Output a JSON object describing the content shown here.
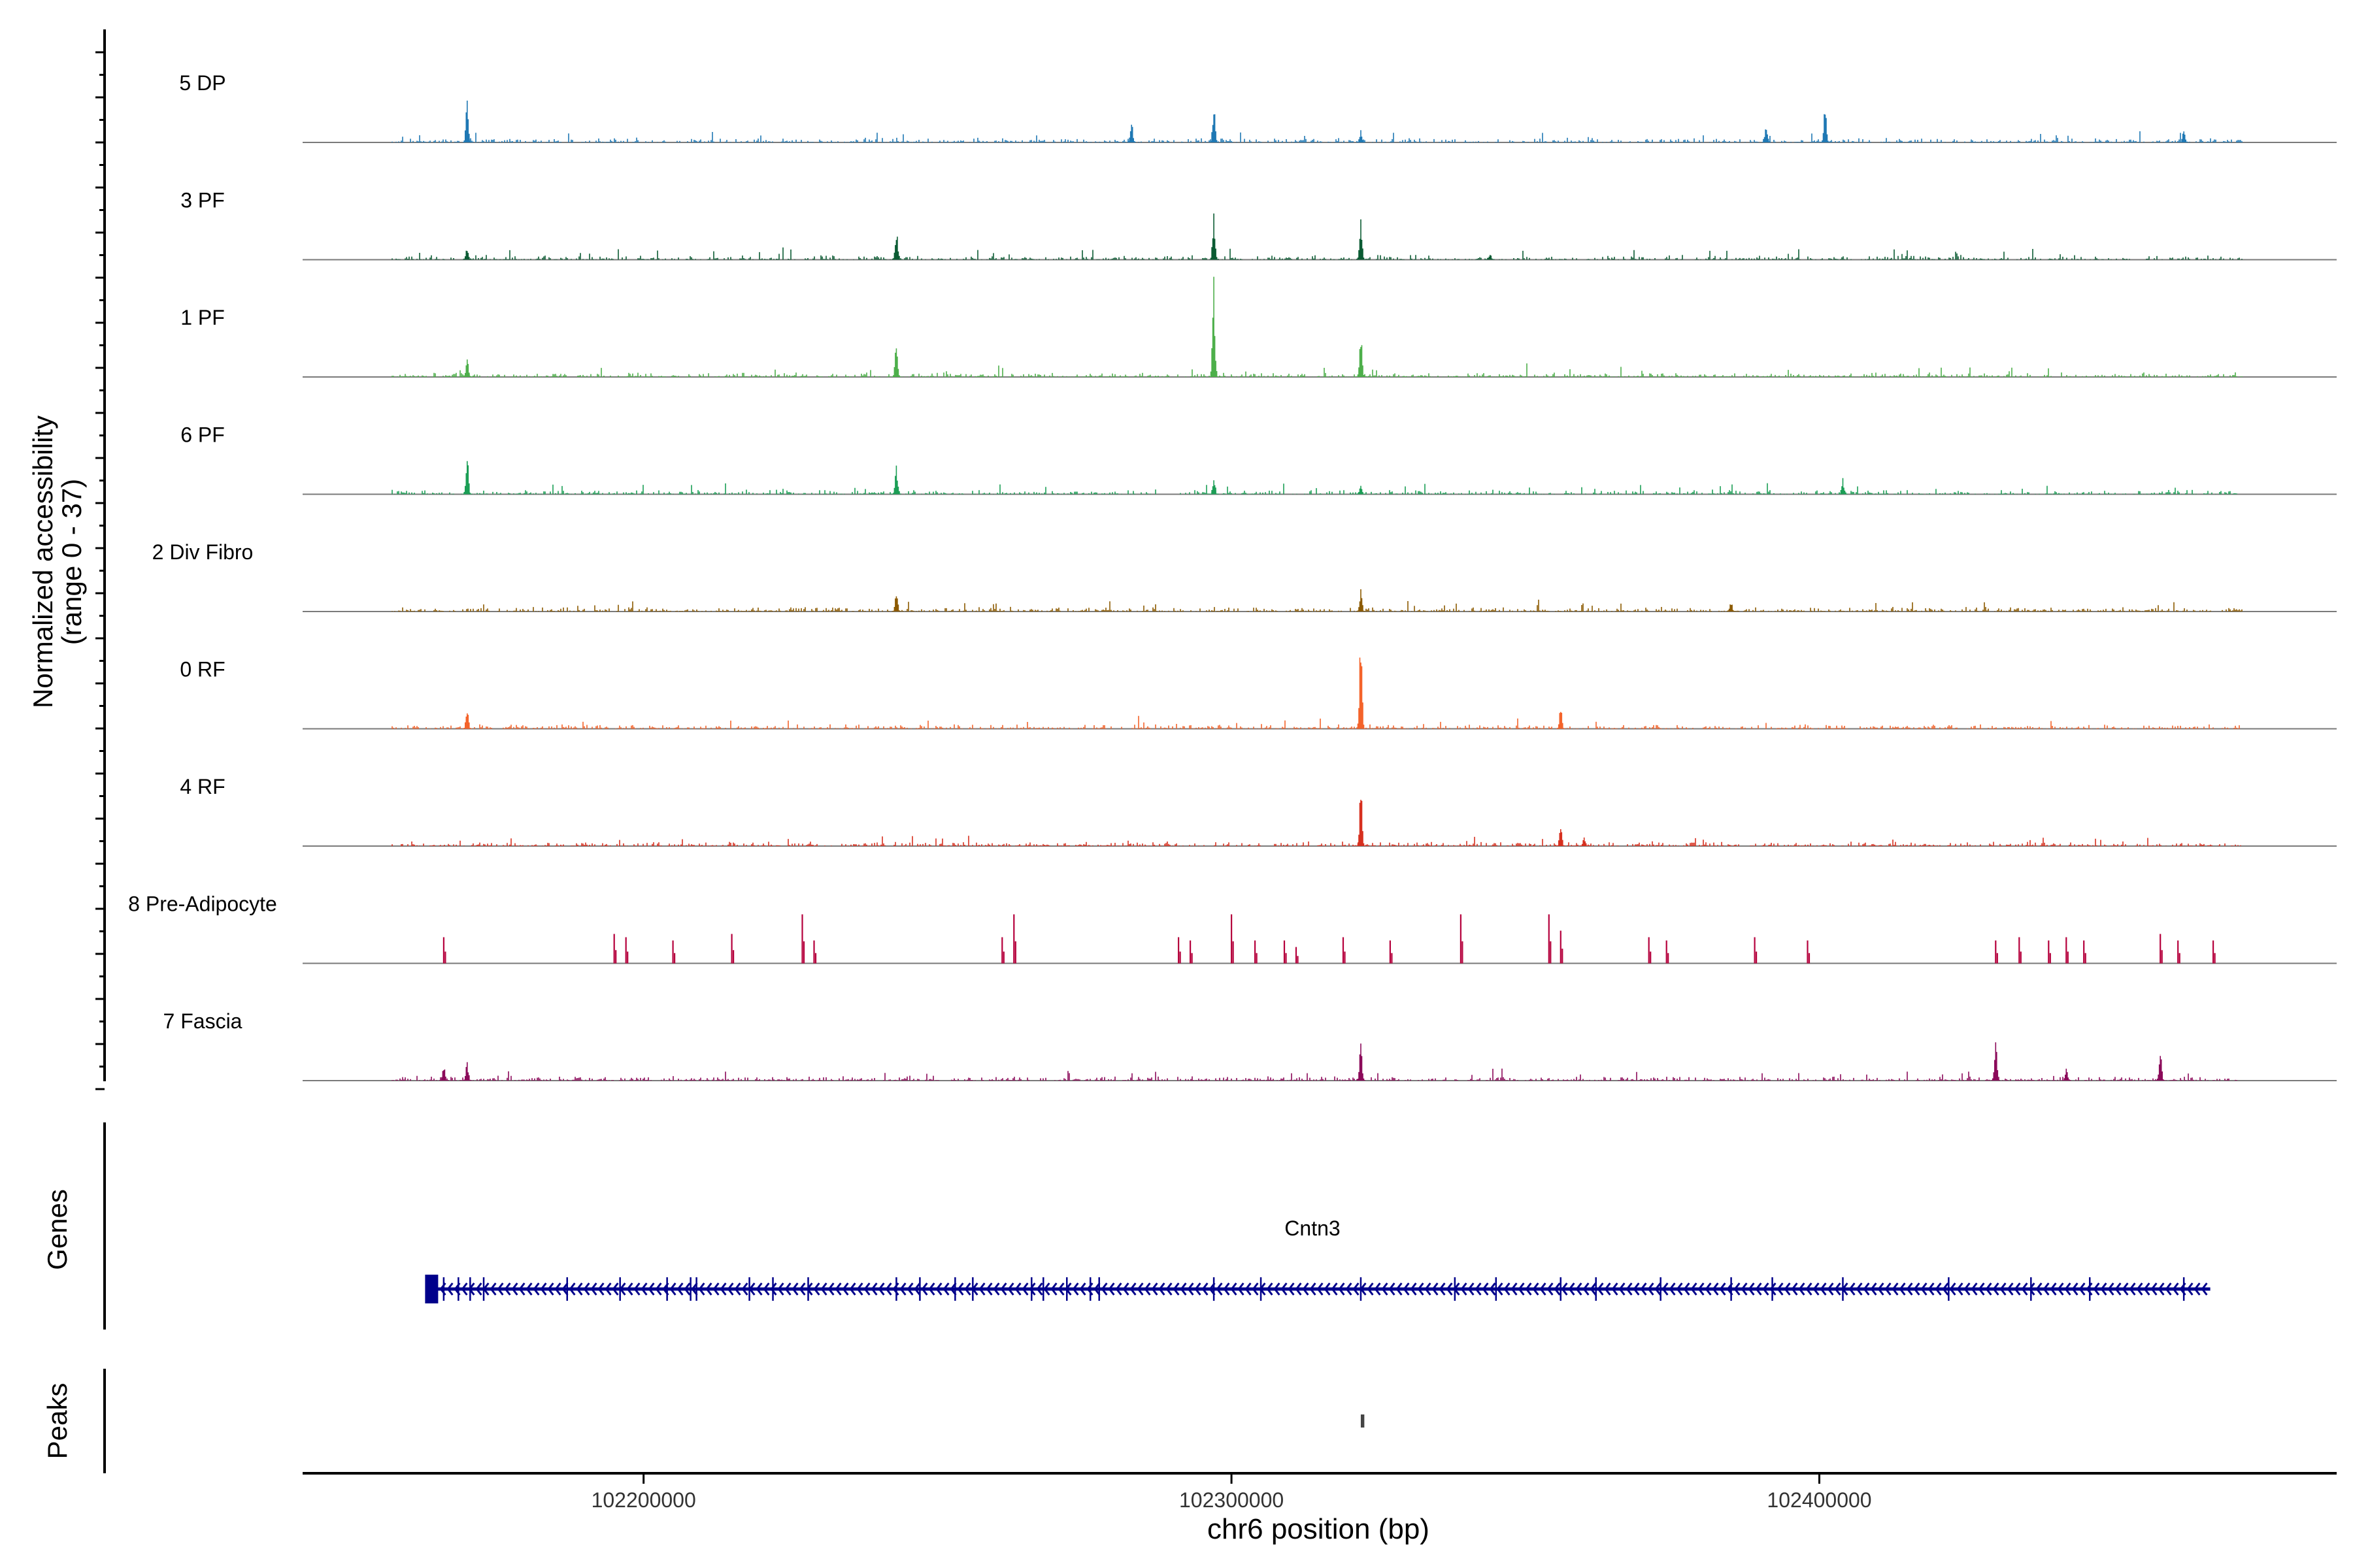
{
  "chart_data": {
    "type": "area",
    "subtype": "genome-coverage-track",
    "region": {
      "chrom": "chr6",
      "start": 102142000,
      "end": 102488000
    },
    "xlabel": "chr6 position (bp)",
    "ylabel_line1": "Normalized accessibility",
    "ylabel_line2": "(range 0 - 37)",
    "y_range": [
      0,
      37
    ],
    "x_ticks": [
      102200000,
      102300000,
      102400000
    ],
    "x_tick_labels": [
      "102200000",
      "102300000",
      "102400000"
    ],
    "panel_labels": {
      "genes": "Genes",
      "peaks": "Peaks"
    },
    "tracks": [
      {
        "name": "5 DP",
        "color": "#1f78b4",
        "style": "dense",
        "seed": 11,
        "peaks": [
          [
            102170000,
            26
          ],
          [
            102283000,
            16
          ],
          [
            102297000,
            26
          ],
          [
            102322000,
            8
          ],
          [
            102391000,
            12
          ],
          [
            102401000,
            24
          ],
          [
            102462000,
            8
          ]
        ]
      },
      {
        "name": "3 PF",
        "color": "#0b5b33",
        "style": "dense",
        "seed": 23,
        "peaks": [
          [
            102170000,
            8
          ],
          [
            102243000,
            20
          ],
          [
            102297000,
            30
          ],
          [
            102322000,
            30
          ],
          [
            102344000,
            4
          ]
        ]
      },
      {
        "name": "1 PF",
        "color": "#4daf4a",
        "style": "dense",
        "seed": 37,
        "peaks": [
          [
            102170000,
            14
          ],
          [
            102243000,
            24
          ],
          [
            102297000,
            62
          ],
          [
            102322000,
            30
          ]
        ]
      },
      {
        "name": "6 PF",
        "color": "#1b9e55",
        "style": "dense",
        "seed": 41,
        "peaks": [
          [
            102170000,
            26
          ],
          [
            102243000,
            20
          ],
          [
            102297000,
            10
          ],
          [
            102322000,
            6
          ],
          [
            102404000,
            10
          ]
        ]
      },
      {
        "name": "2 Div Fibro",
        "color": "#8c5a00",
        "style": "dense",
        "seed": 53,
        "peaks": [
          [
            102243000,
            16
          ],
          [
            102322000,
            14
          ],
          [
            102385000,
            6
          ]
        ]
      },
      {
        "name": "0 RF",
        "color": "#f4632a",
        "style": "dense",
        "seed": 61,
        "peaks": [
          [
            102170000,
            14
          ],
          [
            102322000,
            62
          ],
          [
            102356000,
            14
          ]
        ]
      },
      {
        "name": "4 RF",
        "color": "#d7301f",
        "style": "dense",
        "seed": 71,
        "peaks": [
          [
            102322000,
            38
          ],
          [
            102356000,
            14
          ],
          [
            102360000,
            6
          ]
        ]
      },
      {
        "name": "8 Pre-Adipocyte",
        "color": "#b5003c",
        "style": "sparse",
        "seed": 83,
        "peaks": [
          [
            102166000,
            16
          ],
          [
            102195000,
            18
          ],
          [
            102197000,
            16
          ],
          [
            102205000,
            14
          ],
          [
            102215000,
            18
          ],
          [
            102227000,
            30
          ],
          [
            102229000,
            14
          ],
          [
            102261000,
            16
          ],
          [
            102263000,
            30
          ],
          [
            102291000,
            16
          ],
          [
            102293000,
            14
          ],
          [
            102300000,
            30
          ],
          [
            102304000,
            14
          ],
          [
            102309000,
            14
          ],
          [
            102311000,
            10
          ],
          [
            102319000,
            16
          ],
          [
            102327000,
            14
          ],
          [
            102339000,
            30
          ],
          [
            102354000,
            30
          ],
          [
            102356000,
            20
          ],
          [
            102371000,
            16
          ],
          [
            102374000,
            14
          ],
          [
            102389000,
            16
          ],
          [
            102398000,
            14
          ],
          [
            102430000,
            14
          ],
          [
            102434000,
            16
          ],
          [
            102439000,
            14
          ],
          [
            102442000,
            16
          ],
          [
            102445000,
            14
          ],
          [
            102458000,
            18
          ],
          [
            102461000,
            14
          ],
          [
            102467000,
            14
          ]
        ]
      },
      {
        "name": "7 Fascia",
        "color": "#8b0a5a",
        "style": "dense",
        "seed": 97,
        "peaks": [
          [
            102166000,
            10
          ],
          [
            102170000,
            12
          ],
          [
            102322000,
            28
          ],
          [
            102430000,
            24
          ],
          [
            102442000,
            8
          ],
          [
            102458000,
            20
          ]
        ]
      }
    ],
    "gene": {
      "name": "Cntn3",
      "start": 102163500,
      "end": 102466500,
      "strand": "-",
      "color": "#00008b",
      "exons": [
        102166000,
        102168500,
        102170500,
        102172800,
        102187000,
        102196000,
        102204000,
        102208000,
        102209000,
        102218000,
        102222000,
        102228000,
        102243000,
        102247000,
        102253000,
        102256000,
        102266000,
        102268000,
        102272000,
        102276000,
        102277500,
        102297000,
        102305000,
        102322000,
        102338000,
        102345000,
        102356000,
        102362000,
        102373000,
        102385000,
        102392000,
        102404000,
        102422000,
        102436000,
        102446000,
        102462000
      ]
    },
    "peak_regions": [
      [
        102322000,
        102322600
      ]
    ]
  }
}
